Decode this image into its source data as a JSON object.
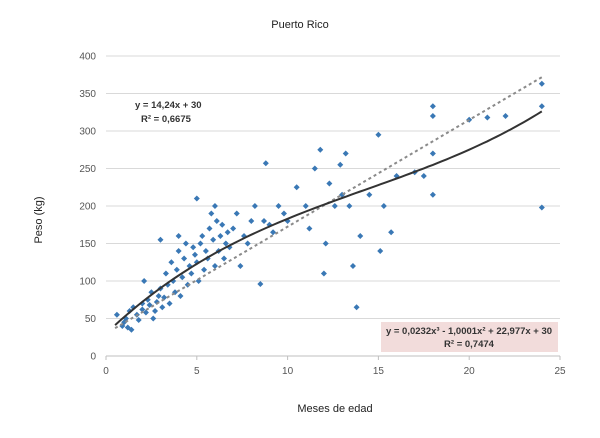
{
  "chart_data": {
    "type": "scatter",
    "title": "Puerto Rico",
    "xlabel": "Meses de edad",
    "ylabel": "Peso (kg)",
    "xlim": [
      0,
      25
    ],
    "ylim": [
      0,
      400
    ],
    "xticks": [
      "0",
      "5",
      "10",
      "15",
      "20",
      "25"
    ],
    "yticks": [
      "0",
      "50",
      "100",
      "150",
      "200",
      "250",
      "300",
      "350",
      "400"
    ],
    "grid": "horizontal",
    "colors": {
      "points": "#3a78b5",
      "linear_fit": "#8a8a8a",
      "poly_fit": "#333333",
      "poly_box": "#f2dcdb"
    },
    "annotations": {
      "linear_eq": "y = 14,24x + 30",
      "linear_r2": "R² = 0,6675",
      "poly_eq": "y = 0,0232x³ - 1,0001x² + 22,977x + 30",
      "poly_r2": "R² = 0,7474"
    },
    "trendlines": [
      {
        "kind": "linear",
        "equation": "y = 14,24x + 30",
        "r2": 0.6675
      },
      {
        "kind": "polynomial",
        "equation": "y = 0,0232x³ - 1,0001x² + 22,977x + 30",
        "r2": 0.7474
      }
    ],
    "series": [
      {
        "points": [
          [
            0.6,
            55
          ],
          [
            0.9,
            40
          ],
          [
            1.0,
            45
          ],
          [
            1.1,
            50
          ],
          [
            1.2,
            38
          ],
          [
            1.3,
            60
          ],
          [
            1.4,
            35
          ],
          [
            1.5,
            65
          ],
          [
            1.7,
            55
          ],
          [
            1.8,
            48
          ],
          [
            2.0,
            62
          ],
          [
            2.0,
            70
          ],
          [
            2.1,
            100
          ],
          [
            2.2,
            58
          ],
          [
            2.3,
            75
          ],
          [
            2.4,
            68
          ],
          [
            2.5,
            85
          ],
          [
            2.6,
            50
          ],
          [
            2.7,
            60
          ],
          [
            2.8,
            72
          ],
          [
            2.9,
            80
          ],
          [
            3.0,
            90
          ],
          [
            3.0,
            155
          ],
          [
            3.1,
            65
          ],
          [
            3.2,
            78
          ],
          [
            3.3,
            110
          ],
          [
            3.4,
            95
          ],
          [
            3.5,
            70
          ],
          [
            3.6,
            125
          ],
          [
            3.7,
            100
          ],
          [
            3.8,
            85
          ],
          [
            3.9,
            115
          ],
          [
            4.0,
            140
          ],
          [
            4.0,
            160
          ],
          [
            4.1,
            80
          ],
          [
            4.2,
            105
          ],
          [
            4.3,
            130
          ],
          [
            4.4,
            150
          ],
          [
            4.5,
            95
          ],
          [
            4.6,
            120
          ],
          [
            4.7,
            110
          ],
          [
            4.8,
            145
          ],
          [
            4.9,
            135
          ],
          [
            5.0,
            125
          ],
          [
            5.0,
            210
          ],
          [
            5.1,
            100
          ],
          [
            5.2,
            150
          ],
          [
            5.3,
            160
          ],
          [
            5.4,
            115
          ],
          [
            5.5,
            140
          ],
          [
            5.6,
            130
          ],
          [
            5.7,
            170
          ],
          [
            5.8,
            190
          ],
          [
            5.9,
            155
          ],
          [
            6.0,
            200
          ],
          [
            6.0,
            120
          ],
          [
            6.1,
            180
          ],
          [
            6.2,
            140
          ],
          [
            6.3,
            160
          ],
          [
            6.4,
            175
          ],
          [
            6.5,
            130
          ],
          [
            6.6,
            150
          ],
          [
            6.7,
            165
          ],
          [
            6.8,
            145
          ],
          [
            7.0,
            170
          ],
          [
            7.2,
            190
          ],
          [
            7.4,
            120
          ],
          [
            7.6,
            160
          ],
          [
            7.8,
            150
          ],
          [
            8.0,
            180
          ],
          [
            8.2,
            200
          ],
          [
            8.5,
            96
          ],
          [
            8.7,
            180
          ],
          [
            8.8,
            257
          ],
          [
            9.0,
            175
          ],
          [
            9.2,
            165
          ],
          [
            9.5,
            200
          ],
          [
            9.8,
            190
          ],
          [
            10.0,
            180
          ],
          [
            10.5,
            225
          ],
          [
            11.0,
            200
          ],
          [
            11.2,
            170
          ],
          [
            11.5,
            250
          ],
          [
            11.8,
            275
          ],
          [
            12.0,
            110
          ],
          [
            12.1,
            150
          ],
          [
            12.3,
            230
          ],
          [
            12.6,
            200
          ],
          [
            12.9,
            255
          ],
          [
            13.0,
            215
          ],
          [
            13.2,
            270
          ],
          [
            13.4,
            200
          ],
          [
            13.6,
            120
          ],
          [
            13.8,
            65
          ],
          [
            14.0,
            160
          ],
          [
            14.5,
            215
          ],
          [
            15.0,
            295
          ],
          [
            15.1,
            140
          ],
          [
            15.3,
            200
          ],
          [
            15.7,
            165
          ],
          [
            16.0,
            240
          ],
          [
            17.0,
            245
          ],
          [
            17.5,
            240
          ],
          [
            18.0,
            215
          ],
          [
            18.0,
            270
          ],
          [
            18.0,
            333
          ],
          [
            18.0,
            320
          ],
          [
            20.0,
            315
          ],
          [
            21.0,
            318
          ],
          [
            22.0,
            320
          ],
          [
            24.0,
            198
          ],
          [
            24.0,
            333
          ],
          [
            24.0,
            363
          ]
        ]
      }
    ]
  }
}
